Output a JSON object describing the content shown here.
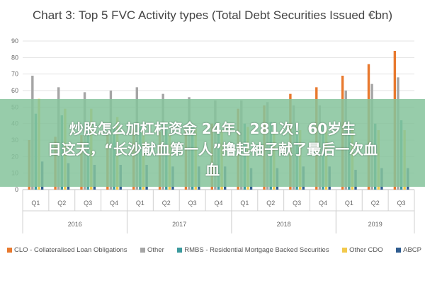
{
  "chart_data": {
    "type": "bar",
    "title": "Chart 3: Top 5 FVC Activity types (Total Debt Securities Issued €bn)",
    "ylim": [
      0,
      90
    ],
    "yticks": [
      0,
      10,
      20,
      30,
      40,
      50,
      60,
      70,
      80,
      90
    ],
    "grid": true,
    "legend_position": "bottom",
    "categories": [
      "Q1",
      "Q2",
      "Q3",
      "Q4",
      "Q1",
      "Q2",
      "Q3",
      "Q4",
      "Q1",
      "Q2",
      "Q3",
      "Q4",
      "Q1",
      "Q2",
      "Q3"
    ],
    "groups": [
      {
        "label": "2016",
        "count": 4
      },
      {
        "label": "2017",
        "count": 4
      },
      {
        "label": "2018",
        "count": 4
      },
      {
        "label": "2019",
        "count": 3
      }
    ],
    "series": [
      {
        "name": "CLO - Collateralised Loan Obligations",
        "color": "#E8792E",
        "values": [
          30,
          32,
          33,
          34,
          37,
          35,
          37,
          40,
          49,
          51,
          58,
          62,
          69,
          76,
          84
        ]
      },
      {
        "name": "Other",
        "color": "#A5A5A5",
        "values": [
          69,
          62,
          59,
          60,
          62,
          58,
          56,
          54,
          54,
          53,
          51,
          51,
          60,
          64,
          68
        ]
      },
      {
        "name": "RMBS - Residential Mortgage Backed Securities",
        "color": "#3C9A9E",
        "values": [
          46,
          45,
          40,
          38,
          38,
          37,
          38,
          37,
          40,
          41,
          40,
          40,
          40,
          40,
          42
        ]
      },
      {
        "name": "Other CDO",
        "color": "#F2C94C",
        "values": [
          55,
          49,
          49,
          44,
          36,
          34,
          37,
          36,
          38,
          35,
          36,
          37,
          37,
          36,
          36
        ]
      },
      {
        "name": "ABCP",
        "color": "#2F5C8F",
        "values": [
          17,
          16,
          15,
          15,
          15,
          14,
          14,
          14,
          13,
          13,
          14,
          14,
          12,
          13,
          13
        ]
      }
    ]
  },
  "overlay": {
    "line1": "炒股怎么加杠杆资金 24年、281次！60岁生",
    "line2": "日这天，“长沙献血第一人”撸起袖子献了最后一次血",
    "line3": "血"
  }
}
